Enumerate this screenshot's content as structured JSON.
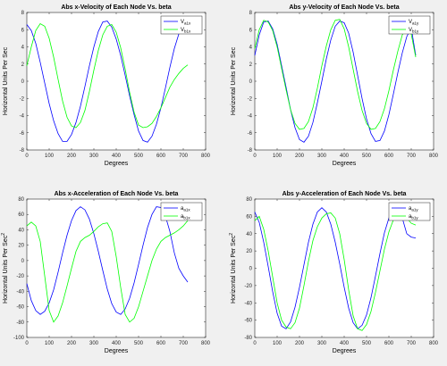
{
  "chart_data": [
    {
      "type": "line",
      "title": "Abs x-Velocity of Each Node Vs. beta",
      "xlabel": "Degrees",
      "ylabel": "Horizontal Units Per Sec",
      "xlim": [
        0,
        800
      ],
      "ylim": [
        -8,
        8
      ],
      "xticks": [
        0,
        100,
        200,
        300,
        400,
        500,
        600,
        700,
        800
      ],
      "yticks": [
        -8,
        -6,
        -4,
        -2,
        0,
        2,
        4,
        6,
        8
      ],
      "grid": false,
      "legend_position": "top-right",
      "legend": [
        {
          "main": "V",
          "sub": "a1x",
          "color": "#0000ff"
        },
        {
          "main": "V",
          "sub": "b1x",
          "color": "#00ff00"
        }
      ],
      "series": [
        {
          "color": "#0000ff",
          "x": [
            0,
            20,
            40,
            60,
            80,
            100,
            120,
            140,
            160,
            180,
            200,
            220,
            240,
            260,
            280,
            300,
            320,
            340,
            360,
            380,
            400,
            420,
            440,
            460,
            480,
            500,
            520,
            540,
            560,
            580,
            600,
            620,
            640,
            660,
            680,
            700,
            720
          ],
          "y": [
            6.6,
            5.9,
            4.4,
            2.2,
            -0.2,
            -2.6,
            -4.6,
            -6.1,
            -7.0,
            -7.0,
            -6.2,
            -4.8,
            -2.9,
            -0.6,
            1.8,
            4.0,
            5.8,
            6.9,
            7.0,
            6.3,
            4.9,
            3.0,
            0.7,
            -1.7,
            -3.9,
            -5.8,
            -6.9,
            -7.1,
            -6.4,
            -5.0,
            -3.1,
            -0.8,
            1.6,
            3.8,
            5.5,
            6.6,
            6.5
          ]
        },
        {
          "color": "#00ff00",
          "x": [
            0,
            20,
            40,
            60,
            80,
            100,
            120,
            140,
            160,
            180,
            200,
            220,
            240,
            260,
            280,
            300,
            320,
            340,
            360,
            380,
            400,
            420,
            440,
            460,
            480,
            500,
            520,
            540,
            560,
            580,
            600,
            620,
            640,
            660,
            680,
            700,
            720
          ],
          "y": [
            1.8,
            4.0,
            5.9,
            6.7,
            6.4,
            5.0,
            2.8,
            0.2,
            -2.3,
            -4.2,
            -5.2,
            -5.4,
            -4.8,
            -3.4,
            -1.2,
            1.3,
            3.6,
            5.4,
            6.4,
            6.6,
            5.7,
            3.9,
            1.4,
            -1.3,
            -3.6,
            -5.1,
            -5.4,
            -5.3,
            -4.9,
            -4.1,
            -3.1,
            -1.9,
            -0.7,
            0.2,
            0.9,
            1.5,
            1.9
          ]
        }
      ]
    },
    {
      "type": "line",
      "title": "Abs y-Velocity of Each Node Vs. beta",
      "xlabel": "Degrees",
      "ylabel": "Horizontal Units Per Sec",
      "xlim": [
        0,
        800
      ],
      "ylim": [
        -8,
        8
      ],
      "xticks": [
        0,
        100,
        200,
        300,
        400,
        500,
        600,
        700,
        800
      ],
      "yticks": [
        -8,
        -6,
        -4,
        -2,
        0,
        2,
        4,
        6,
        8
      ],
      "grid": false,
      "legend_position": "top-right",
      "legend": [
        {
          "main": "V",
          "sub": "a1y",
          "color": "#0000ff"
        },
        {
          "main": "V",
          "sub": "b1y",
          "color": "#00ff00"
        }
      ],
      "series": [
        {
          "color": "#0000ff",
          "x": [
            0,
            20,
            40,
            60,
            80,
            100,
            120,
            140,
            160,
            180,
            200,
            220,
            240,
            260,
            280,
            300,
            320,
            340,
            360,
            380,
            400,
            420,
            440,
            460,
            480,
            500,
            520,
            540,
            560,
            580,
            600,
            620,
            640,
            660,
            680,
            700,
            720
          ],
          "y": [
            3.0,
            5.4,
            6.9,
            7.0,
            6.1,
            4.3,
            1.8,
            -0.7,
            -3.3,
            -5.4,
            -6.8,
            -7.1,
            -6.4,
            -4.8,
            -2.5,
            0.0,
            2.6,
            4.8,
            6.4,
            7.0,
            6.8,
            5.6,
            3.4,
            0.7,
            -2.0,
            -4.4,
            -6.1,
            -7.0,
            -6.9,
            -5.8,
            -3.9,
            -1.5,
            1.0,
            3.3,
            5.2,
            6.2,
            3.0
          ]
        },
        {
          "color": "#00ff00",
          "x": [
            0,
            20,
            40,
            60,
            80,
            100,
            120,
            140,
            160,
            180,
            200,
            220,
            240,
            260,
            280,
            300,
            320,
            340,
            360,
            380,
            400,
            420,
            440,
            460,
            480,
            500,
            520,
            540,
            560,
            580,
            600,
            620,
            640,
            660,
            680,
            700,
            720
          ],
          "y": [
            3.8,
            6.0,
            7.1,
            6.9,
            5.9,
            4.0,
            1.5,
            -1.0,
            -3.3,
            -4.9,
            -5.6,
            -5.5,
            -4.7,
            -3.1,
            -0.8,
            1.8,
            4.1,
            6.0,
            7.1,
            7.2,
            6.1,
            4.0,
            1.4,
            -1.2,
            -3.4,
            -4.9,
            -5.6,
            -5.5,
            -4.7,
            -3.2,
            -1.1,
            1.3,
            3.5,
            5.4,
            6.3,
            5.5,
            2.8
          ]
        }
      ]
    },
    {
      "type": "line",
      "title": "Abs x-Acceleration of Each Node Vs. beta",
      "xlabel": "Degrees",
      "ylabel": "Horizontal Units Per Sec",
      "ylabel_sup": "2",
      "xlim": [
        0,
        800
      ],
      "ylim": [
        -100,
        80
      ],
      "xticks": [
        0,
        100,
        200,
        300,
        400,
        500,
        600,
        700,
        800
      ],
      "yticks": [
        -100,
        -80,
        -60,
        -40,
        -20,
        0,
        20,
        40,
        60,
        80
      ],
      "grid": false,
      "legend_position": "top-right",
      "legend": [
        {
          "main": "a",
          "sub": "a1x",
          "color": "#0000ff"
        },
        {
          "main": "a",
          "sub": "b1x",
          "color": "#00ff00"
        }
      ],
      "series": [
        {
          "color": "#0000ff",
          "x": [
            0,
            20,
            40,
            60,
            80,
            100,
            120,
            140,
            160,
            180,
            200,
            220,
            240,
            260,
            280,
            300,
            320,
            340,
            360,
            380,
            400,
            420,
            440,
            460,
            480,
            500,
            520,
            540,
            560,
            580,
            600,
            620,
            640,
            660,
            680,
            700,
            720
          ],
          "y": [
            -30,
            -52,
            -65,
            -70,
            -66,
            -55,
            -38,
            -15,
            10,
            33,
            52,
            65,
            70,
            66,
            54,
            35,
            12,
            -13,
            -37,
            -56,
            -67,
            -70,
            -63,
            -49,
            -29,
            -5,
            20,
            43,
            60,
            70,
            69,
            58,
            38,
            10,
            -10,
            -20,
            -28
          ]
        },
        {
          "color": "#00ff00",
          "x": [
            0,
            20,
            40,
            60,
            80,
            100,
            120,
            140,
            160,
            180,
            200,
            220,
            240,
            260,
            280,
            300,
            320,
            340,
            360,
            380,
            400,
            420,
            440,
            460,
            480,
            500,
            520,
            540,
            560,
            580,
            600,
            620,
            640,
            660,
            680,
            700,
            720
          ],
          "y": [
            45,
            50,
            45,
            25,
            -20,
            -65,
            -80,
            -72,
            -55,
            -33,
            -10,
            12,
            25,
            30,
            33,
            38,
            44,
            48,
            49,
            38,
            5,
            -35,
            -70,
            -80,
            -75,
            -60,
            -40,
            -20,
            0,
            15,
            25,
            30,
            33,
            36,
            40,
            45,
            52
          ]
        }
      ]
    },
    {
      "type": "line",
      "title": "Abs y-Acceleration of Each Node Vs. beta",
      "xlabel": "Degrees",
      "ylabel": "Horizontal Units Per Sec",
      "ylabel_sup": "2",
      "xlim": [
        0,
        800
      ],
      "ylim": [
        -80,
        80
      ],
      "xticks": [
        0,
        100,
        200,
        300,
        400,
        500,
        600,
        700,
        800
      ],
      "yticks": [
        -80,
        -60,
        -40,
        -20,
        0,
        20,
        40,
        60,
        80
      ],
      "grid": false,
      "legend_position": "top-right",
      "legend": [
        {
          "main": "a",
          "sub": "a1y",
          "color": "#0000ff"
        },
        {
          "main": "a",
          "sub": "b1y",
          "color": "#00ff00"
        }
      ],
      "series": [
        {
          "color": "#0000ff",
          "x": [
            0,
            20,
            40,
            60,
            80,
            100,
            120,
            140,
            160,
            180,
            200,
            220,
            240,
            260,
            280,
            300,
            320,
            340,
            360,
            380,
            400,
            420,
            440,
            460,
            480,
            500,
            520,
            540,
            560,
            580,
            600,
            620,
            640,
            660,
            680,
            700,
            720
          ],
          "y": [
            65,
            53,
            30,
            2,
            -27,
            -52,
            -67,
            -70,
            -62,
            -45,
            -22,
            4,
            30,
            51,
            65,
            70,
            65,
            51,
            30,
            5,
            -22,
            -46,
            -63,
            -70,
            -66,
            -54,
            -34,
            -9,
            17,
            41,
            58,
            68,
            68,
            58,
            40,
            36,
            35
          ]
        },
        {
          "color": "#00ff00",
          "x": [
            0,
            20,
            40,
            60,
            80,
            100,
            120,
            140,
            160,
            180,
            200,
            220,
            240,
            260,
            280,
            300,
            320,
            340,
            360,
            380,
            400,
            420,
            440,
            460,
            480,
            500,
            520,
            540,
            560,
            580,
            600,
            620,
            640,
            660,
            680,
            700,
            720
          ],
          "y": [
            55,
            60,
            45,
            20,
            -10,
            -40,
            -60,
            -68,
            -70,
            -63,
            -46,
            -20,
            8,
            32,
            48,
            58,
            63,
            64,
            58,
            40,
            10,
            -25,
            -55,
            -70,
            -72,
            -65,
            -50,
            -28,
            -3,
            22,
            42,
            56,
            64,
            64,
            58,
            52,
            50
          ]
        }
      ]
    }
  ]
}
